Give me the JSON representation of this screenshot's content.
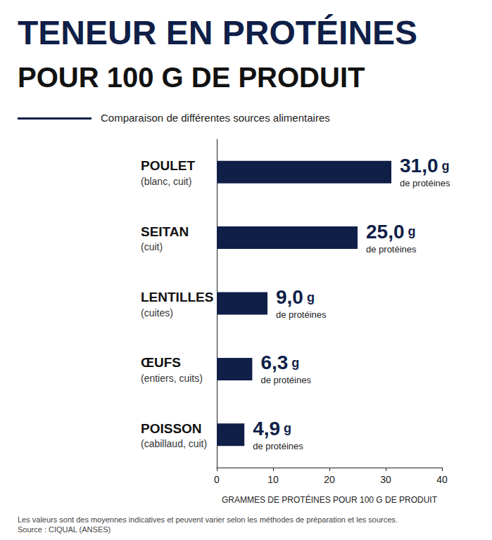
{
  "chart_data": {
    "type": "bar",
    "orientation": "horizontal",
    "title": [
      "TENEUR EN PROTÉINES",
      "POUR 100 G DE PRODUIT"
    ],
    "subtitle": "Comparaison de différentes sources alimentaires",
    "categories": [
      "POULET (blanc, cuit)",
      "SEITAN (cuit)",
      "LENTILLES (cuites)",
      "ŒUFS (entiers, cuits)",
      "POISSON (cabillaud, cuit)"
    ],
    "values": [
      31.0,
      25.0,
      9.0,
      6.3,
      4.9
    ],
    "value_labels": [
      "31,0 g de protéines",
      "25,0 g de protéines",
      "9,0 g de protéines",
      "6,3 g de protéines",
      "4,9 g de protéines"
    ],
    "data_labels": true,
    "color": "#0f1f48",
    "xlabel": "GRAMMES DE PROTÉINES POUR 100 G DE PRODUIT",
    "xlim": [
      0,
      40
    ],
    "xticks": [
      0,
      10,
      20,
      30,
      40
    ],
    "grid": false,
    "annotations": [
      "Les valeurs sont des moyennes indicatives et peuvent varier selon les méthodes de préparation et les sources.",
      "Source : CIQUAL (ANSES)"
    ]
  }
}
